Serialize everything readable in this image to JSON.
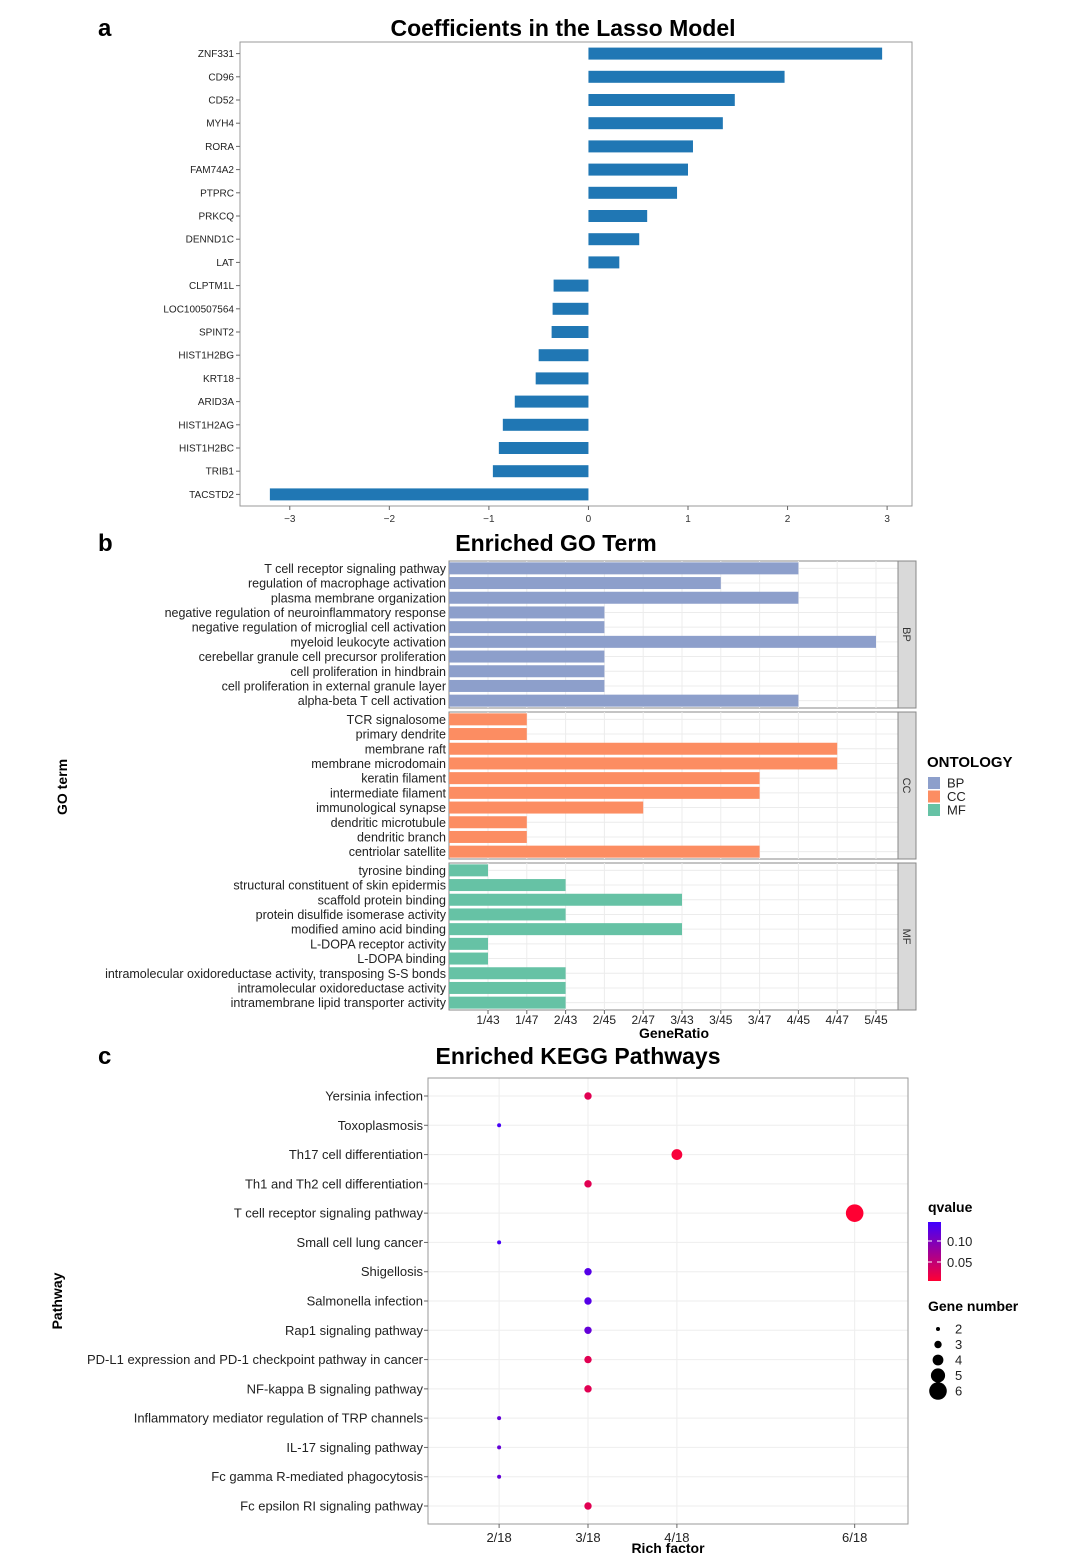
{
  "chart_data": [
    {
      "type": "bar",
      "panel_label": "a",
      "title": "Coefficients  in  the  Lasso  Model",
      "orientation": "horizontal",
      "categories": [
        "ZNF331",
        "CD96",
        "CD52",
        "MYH4",
        "RORA",
        "FAM74A2",
        "PTPRC",
        "PRKCQ",
        "DENND1C",
        "LAT",
        "CLPTM1L",
        "LOC100507564",
        "SPINT2",
        "HIST1H2BG",
        "KRT18",
        "ARID3A",
        "HIST1H2AG",
        "HIST1H2BC",
        "TRIB1",
        "TACSTD2"
      ],
      "values": [
        2.95,
        1.97,
        1.47,
        1.35,
        1.05,
        1.0,
        0.89,
        0.59,
        0.51,
        0.31,
        -0.35,
        -0.36,
        -0.37,
        -0.5,
        -0.53,
        -0.74,
        -0.86,
        -0.9,
        -0.96,
        -3.2
      ],
      "xlim": [
        -3.5,
        3.25
      ],
      "xticks": [
        -3,
        -2,
        -1,
        0,
        1,
        2,
        3
      ],
      "xtick_labels": [
        "−3",
        "−2",
        "−1",
        "0",
        "1",
        "2",
        "3"
      ],
      "color": "#2077b4"
    },
    {
      "type": "bar",
      "panel_label": "b",
      "title": "Enriched GO Term",
      "orientation": "horizontal",
      "xlabel": "GeneRatio",
      "ylabel": "GO term",
      "xtick_labels": [
        "1/43",
        "1/47",
        "2/43",
        "2/45",
        "2/47",
        "3/43",
        "3/45",
        "3/47",
        "4/45",
        "4/47",
        "5/45"
      ],
      "legend": {
        "title": "ONTOLOGY",
        "entries": [
          {
            "label": "BP",
            "color": "#8d9fcb"
          },
          {
            "label": "CC",
            "color": "#fc8d62"
          },
          {
            "label": "MF",
            "color": "#66c2a5"
          }
        ]
      },
      "groups": [
        {
          "name": "BP",
          "terms": [
            "T cell receptor signaling pathway",
            "regulation of macrophage activation",
            "plasma membrane organization",
            "negative regulation of neuroinflammatory response",
            "negative regulation of microglial cell activation",
            "myeloid leukocyte activation",
            "cerebellar granule cell precursor proliferation",
            "cell proliferation in hindbrain",
            "cell proliferation in external granule layer",
            "alpha-beta T cell activation"
          ],
          "ratios": [
            "4/45",
            "3/45",
            "4/45",
            "2/45",
            "2/45",
            "5/45",
            "2/45",
            "2/45",
            "2/45",
            "4/45"
          ]
        },
        {
          "name": "CC",
          "terms": [
            "TCR signalosome",
            "primary dendrite",
            "membrane raft",
            "membrane microdomain",
            "keratin filament",
            "intermediate filament",
            "immunological synapse",
            "dendritic microtubule",
            "dendritic branch",
            "centriolar satellite"
          ],
          "ratios": [
            "1/47",
            "1/47",
            "4/47",
            "4/47",
            "3/47",
            "3/47",
            "2/47",
            "1/47",
            "1/47",
            "3/47"
          ]
        },
        {
          "name": "MF",
          "terms": [
            "tyrosine binding",
            "structural constituent of skin epidermis",
            "scaffold protein binding",
            "protein disulfide isomerase activity",
            "modified amino acid binding",
            "L-DOPA receptor activity",
            "L-DOPA binding",
            "intramolecular oxidoreductase activity, transposing S-S bonds",
            "intramolecular oxidoreductase activity",
            "intramembrane lipid transporter activity"
          ],
          "ratios": [
            "1/43",
            "2/43",
            "3/43",
            "2/43",
            "3/43",
            "1/43",
            "1/43",
            "2/43",
            "2/43",
            "2/43"
          ]
        }
      ]
    },
    {
      "type": "scatter",
      "panel_label": "c",
      "title": "Enriched KEGG Pathways",
      "xlabel": "Rich factor",
      "ylabel": "Pathway",
      "xtick_labels": [
        "2/18",
        "3/18",
        "4/18",
        "6/18"
      ],
      "xlim": [
        1.2,
        6.6
      ],
      "pathways": [
        "Yersinia infection",
        "Toxoplasmosis",
        "Th17 cell differentiation",
        "Th1 and Th2 cell differentiation",
        "T cell receptor signaling pathway",
        "Small cell lung cancer",
        "Shigellosis",
        "Salmonella infection",
        "Rap1 signaling pathway",
        "PD-L1 expression and PD-1 checkpoint pathway in cancer",
        "NF-kappa B signaling pathway",
        "Inflammatory mediator regulation of TRP channels",
        "IL-17 signaling pathway",
        "Fc gamma R-mediated phagocytosis",
        "Fc epsilon RI signaling pathway"
      ],
      "rich_factor": [
        3,
        2,
        4,
        3,
        6,
        2,
        3,
        3,
        3,
        3,
        3,
        2,
        2,
        2,
        3
      ],
      "gene_number": [
        3,
        2,
        4,
        3,
        6,
        2,
        3,
        3,
        3,
        3,
        3,
        2,
        2,
        2,
        3
      ],
      "qvalue": [
        0.025,
        0.13,
        0.01,
        0.025,
        0.005,
        0.13,
        0.12,
        0.12,
        0.11,
        0.025,
        0.025,
        0.11,
        0.11,
        0.11,
        0.025
      ],
      "legend_qvalue": {
        "title": "qvalue",
        "labels": [
          "0.10",
          "0.05"
        ],
        "colors": [
          "#3f00ff",
          "#ff0033"
        ]
      },
      "legend_size": {
        "title": "Gene number",
        "labels": [
          "2",
          "3",
          "4",
          "5",
          "6"
        ]
      }
    }
  ]
}
